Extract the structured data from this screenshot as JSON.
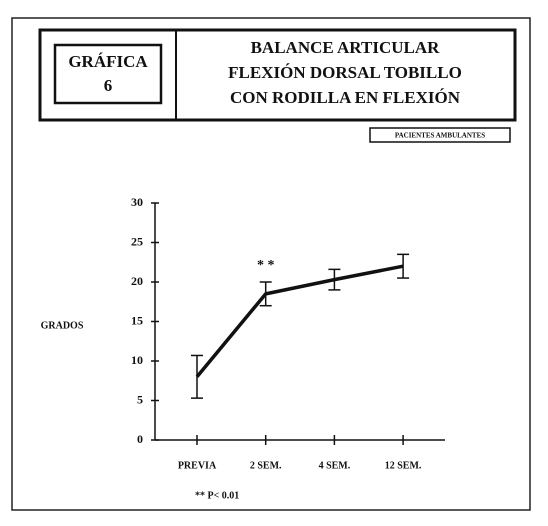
{
  "chart_data": {
    "type": "line",
    "figure_label": "GRÁFICA",
    "figure_number": "6",
    "title": [
      "BALANCE ARTICULAR",
      "FLEXIÓN DORSAL TOBILLO",
      "CON RODILLA  EN FLEXIÓN"
    ],
    "subtitle": "PACIENTES AMBULANTES",
    "y_label": "GRADOS",
    "categories": [
      "PREVIA",
      "2 SEM.",
      "4 SEM.",
      "12 SEM."
    ],
    "values": [
      8,
      18.5,
      20.3,
      22
    ],
    "errors": [
      2.7,
      1.5,
      1.3,
      1.5
    ],
    "color": "#111111",
    "ylim": [
      0,
      30
    ],
    "yticks": [
      0,
      5,
      10,
      15,
      20,
      25,
      30
    ],
    "annotation": "* *",
    "footnote": "** P< 0.01",
    "grid": false
  }
}
